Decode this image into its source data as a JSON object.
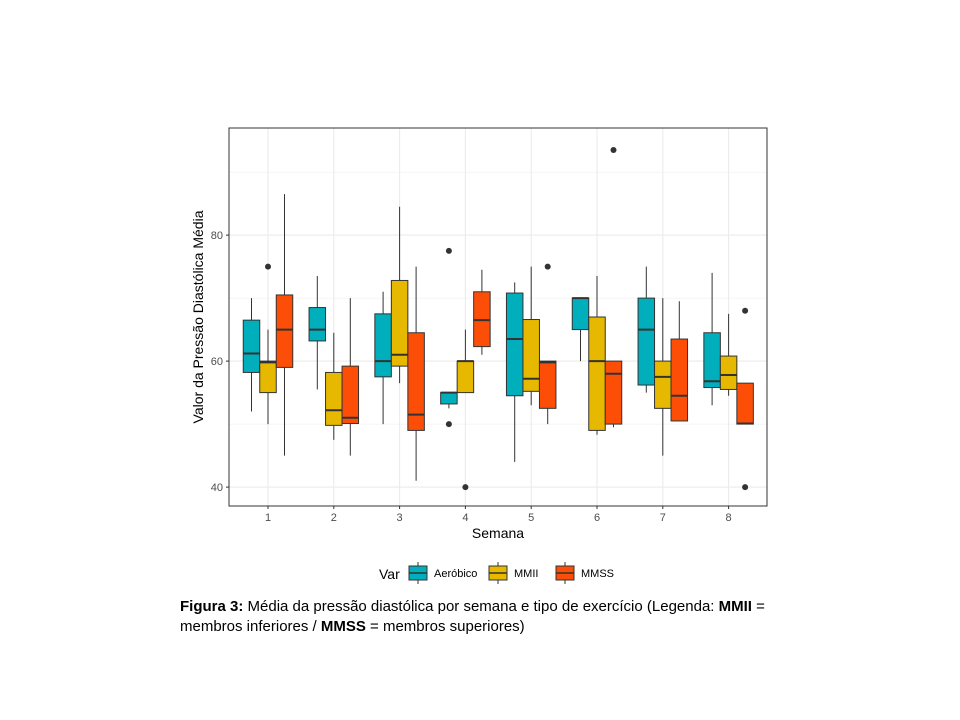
{
  "chart_data": {
    "type": "boxplot",
    "xlabel": "Semana",
    "ylabel": "Valor da Pressão Diastólica Média",
    "categories": [
      "1",
      "2",
      "3",
      "4",
      "5",
      "6",
      "7",
      "8"
    ],
    "ylim": [
      37,
      97
    ],
    "yticks": [
      "40",
      "60",
      "80"
    ],
    "grid": true,
    "legend": {
      "title": "Var",
      "position": "bottom",
      "entries": [
        "Aeróbico",
        "MMII",
        "MMSS"
      ]
    },
    "colors": {
      "Aeróbico": "#00AFBB",
      "MMII": "#E7B800",
      "MMSS": "#FC4E07"
    },
    "series": [
      {
        "name": "Aeróbico",
        "boxes": [
          {
            "min": 52,
            "q1": 58.2,
            "median": 61.2,
            "q3": 66.5,
            "max": 70,
            "outliers": []
          },
          {
            "min": 55.5,
            "q1": 63.2,
            "median": 65,
            "q3": 68.5,
            "max": 73.5,
            "outliers": []
          },
          {
            "min": 50,
            "q1": 57.5,
            "median": 60,
            "q3": 67.5,
            "max": 71,
            "outliers": []
          },
          {
            "min": 52.5,
            "q1": 53.2,
            "median": 55,
            "q3": 55,
            "max": 55,
            "outliers": [
              77.5,
              50
            ]
          },
          {
            "min": 44,
            "q1": 54.5,
            "median": 63.5,
            "q3": 70.8,
            "max": 72.5,
            "outliers": []
          },
          {
            "min": 60,
            "q1": 65,
            "median": 70,
            "q3": 70,
            "max": 70,
            "outliers": []
          },
          {
            "min": 55,
            "q1": 56.2,
            "median": 65,
            "q3": 70,
            "max": 75,
            "outliers": []
          },
          {
            "min": 53,
            "q1": 55.8,
            "median": 56.8,
            "q3": 64.5,
            "max": 74,
            "outliers": []
          }
        ]
      },
      {
        "name": "MMII",
        "boxes": [
          {
            "min": 50,
            "q1": 55,
            "median": 59.8,
            "q3": 60,
            "max": 65,
            "outliers": [
              75
            ]
          },
          {
            "min": 47.5,
            "q1": 49.8,
            "median": 52.2,
            "q3": 58.2,
            "max": 64.5,
            "outliers": []
          },
          {
            "min": 56.5,
            "q1": 59.2,
            "median": 61,
            "q3": 72.8,
            "max": 84.5,
            "outliers": []
          },
          {
            "min": 55,
            "q1": 55,
            "median": 60,
            "q3": 60,
            "max": 65,
            "outliers": [
              40
            ]
          },
          {
            "min": 53,
            "q1": 55.2,
            "median": 57.2,
            "q3": 66.6,
            "max": 75,
            "outliers": []
          },
          {
            "min": 48.3,
            "q1": 49,
            "median": 60,
            "q3": 67,
            "max": 73.5,
            "outliers": []
          },
          {
            "min": 45,
            "q1": 52.5,
            "median": 57.5,
            "q3": 60,
            "max": 70,
            "outliers": []
          },
          {
            "min": 54.5,
            "q1": 55.5,
            "median": 57.8,
            "q3": 60.8,
            "max": 67.5,
            "outliers": []
          }
        ]
      },
      {
        "name": "MMSS",
        "boxes": [
          {
            "min": 45,
            "q1": 59,
            "median": 65,
            "q3": 70.5,
            "max": 86.5,
            "outliers": []
          },
          {
            "min": 45,
            "q1": 50.1,
            "median": 51,
            "q3": 59.2,
            "max": 70,
            "outliers": []
          },
          {
            "min": 41,
            "q1": 49,
            "median": 51.5,
            "q3": 64.5,
            "max": 75,
            "outliers": []
          },
          {
            "min": 61,
            "q1": 62.3,
            "median": 66.5,
            "q3": 71,
            "max": 74.5,
            "outliers": []
          },
          {
            "min": 50,
            "q1": 52.5,
            "median": 59.8,
            "q3": 60,
            "max": 60,
            "outliers": [
              75
            ]
          },
          {
            "min": 49.5,
            "q1": 50,
            "median": 58,
            "q3": 60,
            "max": 60,
            "outliers": [
              93.5
            ]
          },
          {
            "min": 50.5,
            "q1": 50.5,
            "median": 54.5,
            "q3": 63.5,
            "max": 69.5,
            "outliers": []
          },
          {
            "min": 50,
            "q1": 50,
            "median": 50.1,
            "q3": 56.5,
            "max": 56.5,
            "outliers": [
              68,
              40
            ]
          }
        ]
      }
    ]
  },
  "caption": {
    "label": "Figura 3:",
    "text1": " Média da pressão diastólica por semana e tipo de exercício (Legenda: ",
    "b1": "MMII",
    "text2": " = membros inferiores / ",
    "b2": "MMSS",
    "text3": " = membros superiores)"
  }
}
